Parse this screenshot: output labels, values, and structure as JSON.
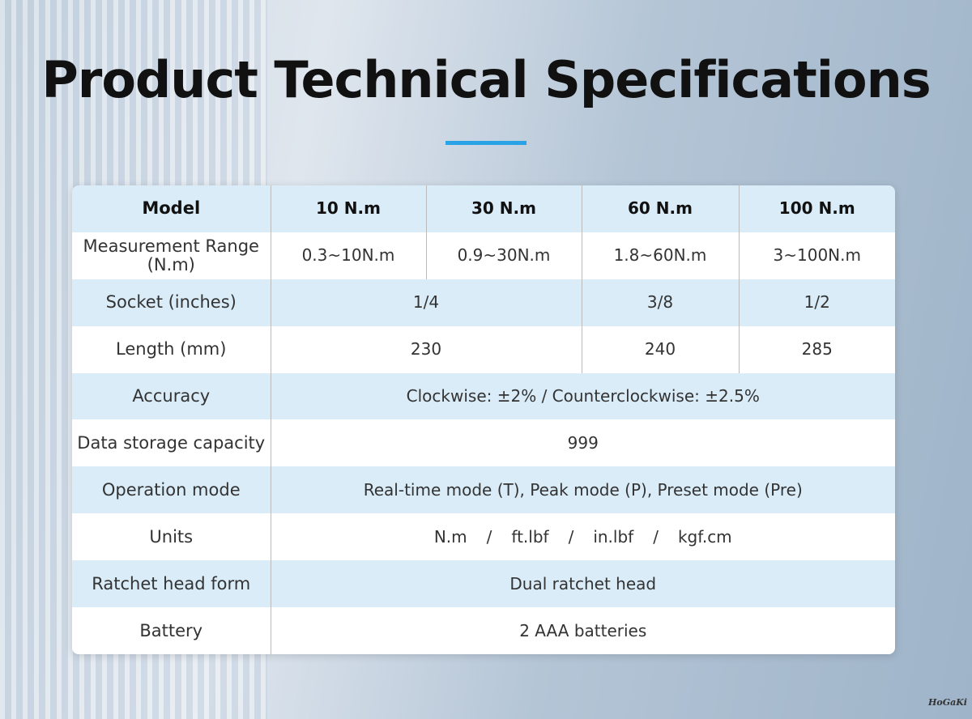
{
  "title": "Product Technical Specifications",
  "logo": "HoGaKi",
  "table": {
    "header": [
      "Model",
      "10 N.m",
      "30 N.m",
      "60 N.m",
      "100 N.m"
    ],
    "rows": [
      {
        "label": "Measurement Range (N.m)",
        "cells": [
          "0.3~10N.m",
          "0.9~30N.m",
          "1.8~60N.m",
          "3~100N.m"
        ]
      },
      {
        "label": "Socket (inches)",
        "cells": [
          "1/4",
          "3/8",
          "1/2"
        ]
      },
      {
        "label": "Length (mm)",
        "cells": [
          "230",
          "240",
          "285"
        ]
      },
      {
        "label": "Accuracy",
        "cells": [
          "Clockwise: ±2% / Counterclockwise: ±2.5%"
        ]
      },
      {
        "label": "Data storage capacity",
        "cells": [
          "999"
        ]
      },
      {
        "label": "Operation mode",
        "cells": [
          "Real-time mode (T), Peak mode (P), Preset mode (Pre)"
        ]
      },
      {
        "label": "Units",
        "cells": [
          [
            "N.m",
            "/",
            "ft.lbf",
            "/",
            "in.lbf",
            "/",
            "kgf.cm"
          ]
        ]
      },
      {
        "label": "Ratchet head form",
        "cells": [
          "Dual ratchet head"
        ]
      },
      {
        "label": "Battery",
        "cells": [
          "2 AAA batteries"
        ]
      }
    ]
  }
}
